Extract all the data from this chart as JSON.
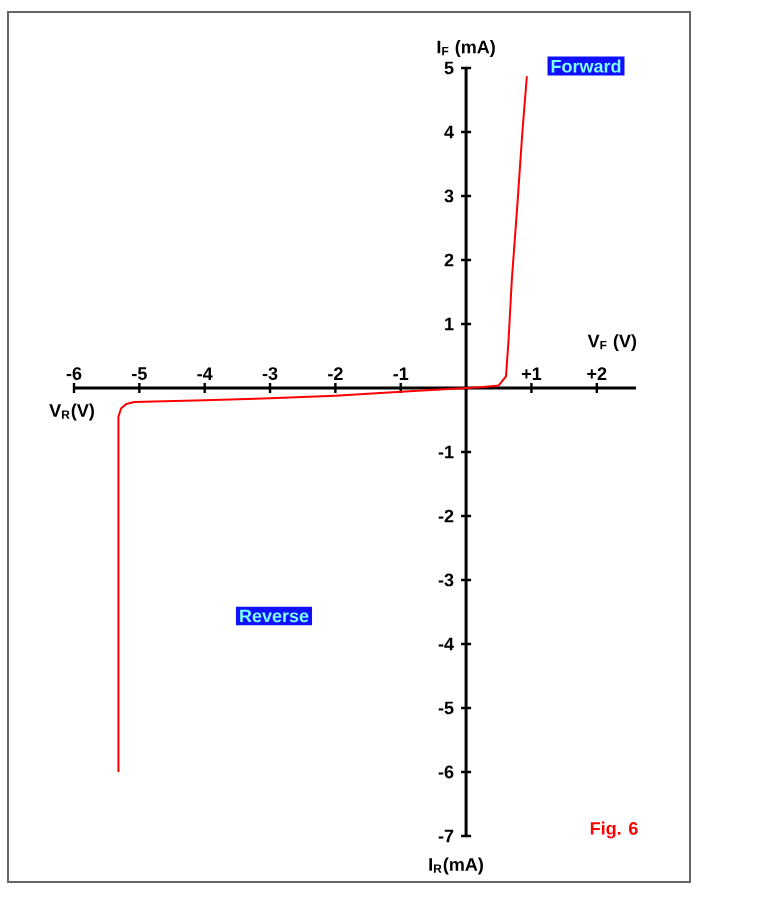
{
  "chart_data": {
    "type": "line",
    "xlabel": "V$_{F}$ (V)",
    "ylabel": "I$_{F}$ (mA)",
    "x": [
      -5.32,
      -5.32,
      -5.28,
      -5.2,
      -5.08,
      -4,
      -3,
      -2,
      -1,
      0,
      0.22,
      0.5,
      0.61,
      0.65,
      0.7,
      0.79,
      0.86,
      0.93
    ],
    "series": [
      {
        "color": "#ff0000",
        "values": [
          -6,
          -0.45,
          -0.32,
          -0.25,
          -0.22,
          -0.19,
          -0.16,
          -0.12,
          -0.06,
          0,
          0.01,
          0.04,
          0.18,
          0.75,
          1.69,
          2.94,
          3.98,
          4.87
        ]
      }
    ],
    "xlim": [
      -6,
      2.6
    ],
    "ylim": [
      -7,
      5
    ],
    "xticks": [
      -6,
      -5,
      -4,
      -3,
      -2,
      -1,
      {
        "value": 1,
        "label": "+1"
      },
      {
        "value": 2,
        "label": "+2"
      }
    ],
    "yticks": [
      5,
      4,
      3,
      2,
      1,
      -1,
      -2,
      -3,
      -4,
      -5,
      -6,
      -7
    ],
    "annotations": [
      "Forward",
      "Reverse",
      "Fig. 6",
      "V$_{R}$(V)",
      "I$_{R}$(mA)"
    ]
  }
}
